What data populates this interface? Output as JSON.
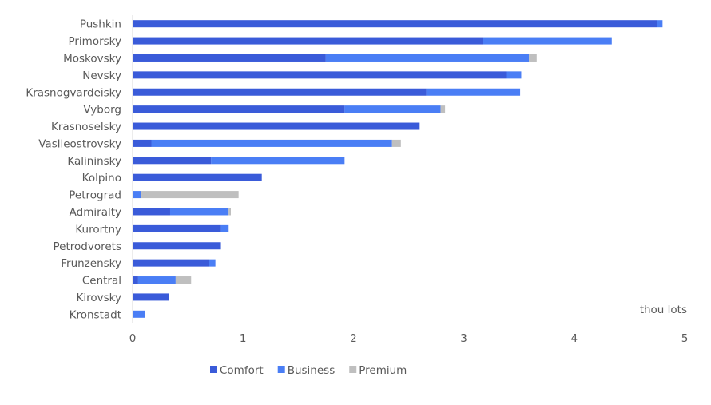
{
  "chart_data": {
    "type": "bar",
    "orientation": "horizontal",
    "stacked": true,
    "categories": [
      "Pushkin",
      "Primorsky",
      "Moskovsky",
      "Nevsky",
      "Krasnogvardeisky",
      "Vyborg",
      "Krasnoselsky",
      "Vasileostrovsky",
      "Kalininsky",
      "Kolpino",
      "Petrograd",
      "Admiralty",
      "Kurortny",
      "Petrodvorets",
      "Frunzensky",
      "Central",
      "Kirovsky",
      "Kronstadt"
    ],
    "series": [
      {
        "name": "Comfort",
        "color": "#3a5bd9",
        "values": [
          4.75,
          3.17,
          1.75,
          3.39,
          2.66,
          1.92,
          2.6,
          0.17,
          0.71,
          1.17,
          0.0,
          0.34,
          0.8,
          0.8,
          0.69,
          0.05,
          0.33,
          0.0
        ]
      },
      {
        "name": "Business",
        "color": "#4a7ef5",
        "values": [
          0.05,
          1.17,
          1.84,
          0.13,
          0.85,
          0.87,
          0.0,
          2.18,
          1.21,
          0.0,
          0.08,
          0.53,
          0.07,
          0.0,
          0.06,
          0.34,
          0.0,
          0.11
        ]
      },
      {
        "name": "Premium",
        "color": "#bfbfbf",
        "values": [
          0.0,
          0.0,
          0.07,
          0.0,
          0.0,
          0.04,
          0.0,
          0.08,
          0.0,
          0.0,
          0.88,
          0.02,
          0.0,
          0.0,
          0.0,
          0.14,
          0.0,
          0.0
        ]
      }
    ],
    "xticks": [
      "0",
      "1",
      "2",
      "3",
      "4",
      "5"
    ],
    "xlim": [
      0,
      5
    ],
    "unit_label": "thou lots",
    "legend_position": "bottom",
    "grid": false
  }
}
